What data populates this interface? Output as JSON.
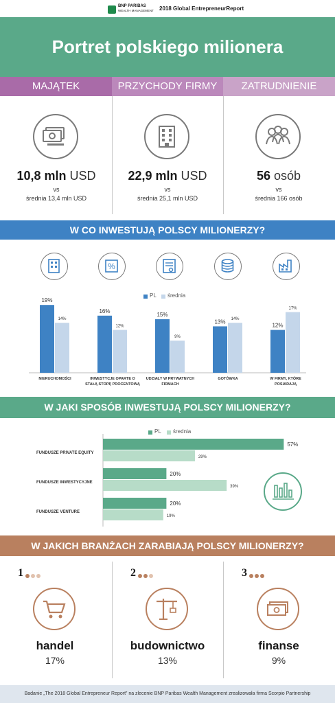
{
  "header": {
    "logo_name": "BNP PARIBAS",
    "logo_sub": "WEALTH MANAGEMENT",
    "report": "2018 Global EntrepreneurReport"
  },
  "title": "Portret polskiego milionera",
  "stats": [
    {
      "heading": "MAJĄTEK",
      "icon": "banknotes-icon",
      "value": "10,8 mln",
      "unit": "USD",
      "vs": "vs",
      "avg": "średnia 13,4 mln USD",
      "color": "#a96ba8"
    },
    {
      "heading": "PRZYCHODY FIRMY",
      "icon": "office-building-icon",
      "value": "22,9 mln",
      "unit": "USD",
      "vs": "vs",
      "avg": "średnia 25,1 mln USD",
      "color": "#bb88bb"
    },
    {
      "heading": "ZATRUDNIENIE",
      "icon": "people-icon",
      "value": "56",
      "unit": "osób",
      "vs": "vs",
      "avg": "średnia 166 osób",
      "color": "#c9a3c8"
    }
  ],
  "investments": {
    "heading": "W CO INWESTUJĄ POLSCY MILIONERZY?",
    "icons": [
      "building-icon",
      "percent-icon",
      "certificate-icon",
      "coin-stack-icon",
      "factory-icon"
    ]
  },
  "methods": {
    "heading": "W JAKI SPOSÓB INWESTUJĄ POLSCY MILIONERZY?",
    "icon": "bar-chart-icon"
  },
  "industries": {
    "heading": "W JAKICH BRANŻACH ZARABIAJĄ POLSCY MILIONERZY?",
    "items": [
      {
        "rank": "1",
        "icon": "shopping-cart-icon",
        "name": "handel",
        "pct": "17%"
      },
      {
        "rank": "2",
        "icon": "crane-icon",
        "name": "budownictwo",
        "pct": "13%"
      },
      {
        "rank": "3",
        "icon": "money-icon",
        "name": "finanse",
        "pct": "9%"
      }
    ]
  },
  "footer": "Badanie „The 2018 Global Entrepreneur Report” na zlecenie BNP Paribas Wealth Management zrealizowała firma Scorpio Partnership",
  "colors": {
    "pl_blue": "#3e82c4",
    "avg_blue": "#c4d6ea",
    "pl_green": "#5aa989",
    "avg_green": "#b7dcc8",
    "brown": "#b9805f"
  },
  "chart_data": [
    {
      "type": "bar",
      "categories": [
        "NIERUCHOMOŚCI",
        "INWESTYCJE OPARTE O STAŁĄ STOPĘ PROCENTOWĄ",
        "UDZIAŁY W PRYWATNYCH FIRMACH",
        "GOTÓWKA",
        "W FIRMY, KTÓRE POSIADAJĄ"
      ],
      "series": [
        {
          "name": "PL",
          "values": [
            19,
            16,
            15,
            13,
            12
          ],
          "labels": [
            "19%",
            "16%",
            "15%",
            "13%",
            "12%"
          ]
        },
        {
          "name": "średnia",
          "values": [
            14,
            12,
            9,
            14,
            17
          ],
          "labels": [
            "14%",
            "12%",
            "9%",
            "14%",
            "17%"
          ]
        }
      ],
      "ylim": [
        0,
        20
      ],
      "legend": "top-center",
      "grid": false
    },
    {
      "type": "bar",
      "orientation": "horizontal",
      "categories": [
        "FUNDUSZE PRIVATE EQUITY",
        "FUNDUSZE INWESTYCYJNE",
        "FUNDUSZE VENTURE"
      ],
      "series": [
        {
          "name": "PL",
          "values": [
            57,
            20,
            20
          ],
          "labels": [
            "57%",
            "20%",
            "20%"
          ]
        },
        {
          "name": "średnia",
          "values": [
            29,
            39,
            19
          ],
          "labels": [
            "29%",
            "39%",
            "19%"
          ]
        }
      ],
      "xlim": [
        0,
        60
      ],
      "legend": "top-center",
      "grid": false
    }
  ]
}
